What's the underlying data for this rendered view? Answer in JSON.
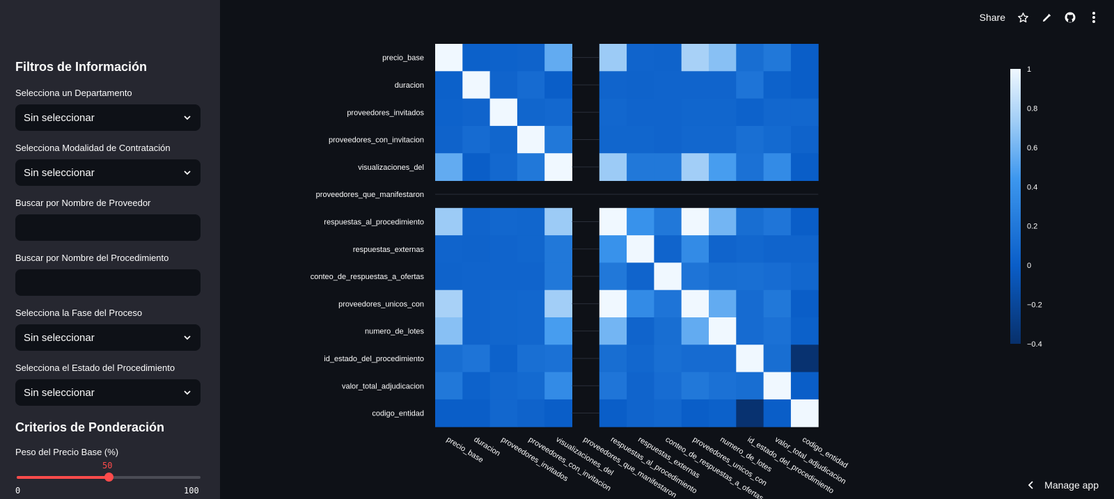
{
  "toolbar": {
    "share_label": "Share",
    "icons": [
      "star-icon",
      "pencil-icon",
      "github-icon",
      "kebab-menu-icon"
    ]
  },
  "sidebar": {
    "filters_title": "Filtros de Información",
    "departamento_label": "Selecciona un Departamento",
    "departamento_value": "Sin seleccionar",
    "modalidad_label": "Selecciona Modalidad de Contratación",
    "modalidad_value": "Sin seleccionar",
    "proveedor_label": "Buscar por Nombre de Proveedor",
    "proveedor_value": "",
    "procedimiento_label": "Buscar por Nombre del Procedimiento",
    "procedimiento_value": "",
    "fase_label": "Selecciona la Fase del Proceso",
    "fase_value": "Sin seleccionar",
    "estado_label": "Selecciona el Estado del Procedimiento",
    "estado_value": "Sin seleccionar",
    "criteria_title": "Criterios de Ponderación",
    "peso_label": "Peso del Precio Base (%)",
    "peso_value": "50",
    "peso_min": "0",
    "peso_max": "100",
    "peso_fraction": 0.5
  },
  "manage_app": "Manage app",
  "colors": {
    "accent": "#ff4b4b",
    "background": "#0e1117",
    "sidebar": "#262730"
  },
  "chart_data": {
    "type": "heatmap",
    "title": "",
    "variables": [
      "precio_base",
      "duracion",
      "proveedores_invitados",
      "proveedores_con_invitacion",
      "visualizaciones_del",
      "proveedores_que_manifestaron",
      "respuestas_al_procedimiento",
      "respuestas_externas",
      "conteo_de_respuestas_a_ofertas",
      "proveedores_unicos_con",
      "numero_de_lotes",
      "id_estado_del_procedimiento",
      "valor_total_adjudicacion",
      "codigo_entidad"
    ],
    "colorbar": {
      "min": -0.4,
      "max": 1,
      "ticks": [
        "1",
        "0.8",
        "0.6",
        "0.4",
        "0.2",
        "0",
        "−0.2",
        "−0.4"
      ]
    },
    "matrix": [
      [
        1,
        0.02,
        0.03,
        0.04,
        0.55,
        null,
        0.72,
        0.05,
        0.04,
        0.76,
        0.66,
        0.12,
        0.2,
        0.0
      ],
      [
        0.02,
        1,
        0.05,
        0.1,
        0.0,
        null,
        0.05,
        0.04,
        0.05,
        0.05,
        0.05,
        0.17,
        0.03,
        0.0
      ],
      [
        0.03,
        0.05,
        1,
        0.06,
        0.08,
        null,
        0.07,
        0.05,
        0.05,
        0.06,
        0.06,
        0.03,
        0.07,
        0.07
      ],
      [
        0.04,
        0.1,
        0.06,
        1,
        0.2,
        null,
        0.06,
        0.06,
        0.05,
        0.07,
        0.07,
        0.13,
        0.09,
        0.04
      ],
      [
        0.55,
        0.0,
        0.08,
        0.2,
        1,
        null,
        0.72,
        0.2,
        0.2,
        0.74,
        0.47,
        0.15,
        0.35,
        0.0
      ],
      [
        null,
        null,
        null,
        null,
        null,
        null,
        null,
        null,
        null,
        null,
        null,
        null,
        null,
        null
      ],
      [
        0.72,
        0.05,
        0.07,
        0.06,
        0.72,
        null,
        1,
        0.4,
        0.2,
        1,
        0.6,
        0.12,
        0.18,
        0.0
      ],
      [
        0.05,
        0.04,
        0.05,
        0.06,
        0.2,
        null,
        0.4,
        1,
        0.05,
        0.35,
        0.05,
        0.07,
        0.05,
        0.05
      ],
      [
        0.04,
        0.05,
        0.05,
        0.05,
        0.2,
        null,
        0.2,
        0.05,
        1,
        0.17,
        0.12,
        0.13,
        0.11,
        0.07
      ],
      [
        0.76,
        0.05,
        0.06,
        0.07,
        0.74,
        null,
        1,
        0.35,
        0.17,
        1,
        0.55,
        0.1,
        0.2,
        0.0
      ],
      [
        0.66,
        0.05,
        0.06,
        0.07,
        0.47,
        null,
        0.6,
        0.05,
        0.12,
        0.55,
        1,
        0.1,
        0.15,
        0.02
      ],
      [
        0.12,
        0.17,
        0.03,
        0.13,
        0.15,
        null,
        0.12,
        0.07,
        0.13,
        0.1,
        0.1,
        1,
        0.12,
        -0.38
      ],
      [
        0.2,
        0.03,
        0.07,
        0.09,
        0.35,
        null,
        0.18,
        0.05,
        0.11,
        0.2,
        0.15,
        0.12,
        1,
        0.0
      ],
      [
        0.0,
        0.0,
        0.07,
        0.04,
        0.0,
        null,
        0.0,
        0.05,
        0.07,
        0.0,
        0.02,
        -0.38,
        0.0,
        1
      ]
    ]
  }
}
